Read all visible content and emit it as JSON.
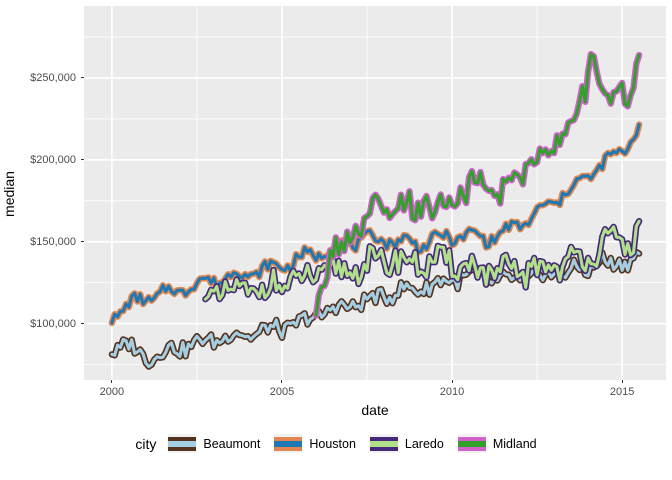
{
  "chart_data": {
    "type": "line",
    "title": "",
    "xlabel": "date",
    "ylabel": "median",
    "legend_title": "city",
    "legend_position": "bottom",
    "panel_bg": "#EBEBEB",
    "grid_color": "#FFFFFF",
    "grid": "on",
    "tick_label_color": "#4D4D4D",
    "axes": {
      "x": {
        "min": 1999.18,
        "max": 2016.29,
        "major_ticks": [
          {
            "v": 2000,
            "label": "2000"
          },
          {
            "v": 2005,
            "label": "2005"
          },
          {
            "v": 2010,
            "label": "2010"
          },
          {
            "v": 2015,
            "label": "2015"
          }
        ],
        "minor_ticks": [
          2002.5,
          2007.5,
          2012.5
        ]
      },
      "y": {
        "min": 65550,
        "max": 293960,
        "major_ticks": [
          {
            "v": 100000,
            "label": "$100,000"
          },
          {
            "v": 150000,
            "label": "$150,000"
          },
          {
            "v": 200000,
            "label": "$200,000"
          },
          {
            "v": 250000,
            "label": "$250,000"
          }
        ],
        "minor_ticks": [
          75000,
          125000,
          175000,
          225000,
          275000
        ]
      }
    },
    "series": [
      {
        "name": "Beaumont",
        "inner_color": "#A6CEE3",
        "outline_color": "#54331F",
        "noise_amp_k": 5,
        "seasonal_amp_k": 2,
        "seed": 3,
        "anchors_year_valueK": [
          [
            2000.0,
            83
          ],
          [
            2000.4,
            88
          ],
          [
            2000.8,
            82
          ],
          [
            2001.2,
            79
          ],
          [
            2001.6,
            84
          ],
          [
            2002.0,
            85
          ],
          [
            2002.5,
            88
          ],
          [
            2003.0,
            90
          ],
          [
            2003.5,
            93
          ],
          [
            2004.0,
            93
          ],
          [
            2004.5,
            96
          ],
          [
            2005.0,
            97
          ],
          [
            2005.5,
            100
          ],
          [
            2006.0,
            105
          ],
          [
            2006.5,
            109
          ],
          [
            2007.0,
            111
          ],
          [
            2007.5,
            114
          ],
          [
            2008.0,
            117
          ],
          [
            2008.5,
            120
          ],
          [
            2009.0,
            121
          ],
          [
            2009.5,
            124
          ],
          [
            2010.0,
            127
          ],
          [
            2010.5,
            129
          ],
          [
            2011.0,
            128
          ],
          [
            2011.5,
            126
          ],
          [
            2012.0,
            127
          ],
          [
            2012.5,
            129
          ],
          [
            2013.0,
            130
          ],
          [
            2013.5,
            132
          ],
          [
            2014.0,
            133
          ],
          [
            2014.4,
            140
          ],
          [
            2014.6,
            134
          ],
          [
            2015.0,
            138
          ],
          [
            2015.5,
            142
          ]
        ]
      },
      {
        "name": "Houston",
        "inner_color": "#1F78B4",
        "outline_color": "#E08850",
        "noise_amp_k": 3.5,
        "seasonal_amp_k": 3,
        "seed": 7,
        "anchors_year_valueK": [
          [
            2000.0,
            105
          ],
          [
            2000.5,
            111
          ],
          [
            2001.0,
            116
          ],
          [
            2001.5,
            118
          ],
          [
            2002.0,
            121
          ],
          [
            2002.5,
            124
          ],
          [
            2003.0,
            127
          ],
          [
            2003.5,
            129
          ],
          [
            2004.0,
            131
          ],
          [
            2004.5,
            133
          ],
          [
            2005.0,
            136
          ],
          [
            2005.5,
            139
          ],
          [
            2006.0,
            143
          ],
          [
            2006.5,
            146
          ],
          [
            2007.0,
            150
          ],
          [
            2007.5,
            151
          ],
          [
            2008.0,
            152
          ],
          [
            2008.5,
            150
          ],
          [
            2009.0,
            149
          ],
          [
            2009.5,
            151
          ],
          [
            2010.0,
            153
          ],
          [
            2010.5,
            154
          ],
          [
            2011.0,
            152
          ],
          [
            2011.5,
            155
          ],
          [
            2012.0,
            161
          ],
          [
            2012.5,
            167
          ],
          [
            2013.0,
            175
          ],
          [
            2013.5,
            182
          ],
          [
            2014.0,
            191
          ],
          [
            2014.5,
            198
          ],
          [
            2015.0,
            206
          ],
          [
            2015.5,
            219
          ]
        ]
      },
      {
        "name": "Laredo",
        "inner_color": "#B2DF8A",
        "outline_color": "#45297B",
        "noise_amp_k": 8.5,
        "seasonal_amp_k": 3,
        "seed": 11,
        "anchors_year_valueK": [
          [
            2002.75,
            121
          ],
          [
            2003.0,
            117
          ],
          [
            2003.5,
            119
          ],
          [
            2004.0,
            120
          ],
          [
            2004.5,
            122
          ],
          [
            2005.0,
            124
          ],
          [
            2005.5,
            126
          ],
          [
            2006.0,
            129
          ],
          [
            2006.5,
            131
          ],
          [
            2007.0,
            133
          ],
          [
            2007.5,
            136
          ],
          [
            2008.0,
            138
          ],
          [
            2008.5,
            139
          ],
          [
            2009.0,
            136
          ],
          [
            2009.5,
            137
          ],
          [
            2010.0,
            137
          ],
          [
            2010.5,
            135
          ],
          [
            2011.0,
            131
          ],
          [
            2011.5,
            131
          ],
          [
            2012.0,
            132
          ],
          [
            2012.5,
            133
          ],
          [
            2013.0,
            136
          ],
          [
            2013.5,
            138
          ],
          [
            2014.0,
            142
          ],
          [
            2014.5,
            148
          ],
          [
            2014.9,
            151
          ],
          [
            2015.2,
            150
          ],
          [
            2015.5,
            153
          ]
        ]
      },
      {
        "name": "Midland",
        "inner_color": "#33A02C",
        "outline_color": "#CF63CB",
        "noise_amp_k": 9,
        "seasonal_amp_k": 4,
        "seed": 19,
        "anchors_year_valueK": [
          [
            2006.0,
            108
          ],
          [
            2006.3,
            135
          ],
          [
            2006.7,
            146
          ],
          [
            2007.0,
            152
          ],
          [
            2007.5,
            161
          ],
          [
            2007.9,
            172
          ],
          [
            2008.3,
            166
          ],
          [
            2008.8,
            170
          ],
          [
            2009.2,
            174
          ],
          [
            2009.6,
            169
          ],
          [
            2010.0,
            176
          ],
          [
            2010.5,
            181
          ],
          [
            2011.0,
            185
          ],
          [
            2011.4,
            178
          ],
          [
            2012.0,
            194
          ],
          [
            2012.5,
            200
          ],
          [
            2013.0,
            211
          ],
          [
            2013.5,
            224
          ],
          [
            2013.8,
            232
          ],
          [
            2014.05,
            255
          ],
          [
            2014.15,
            270
          ],
          [
            2014.35,
            244
          ],
          [
            2014.7,
            238
          ],
          [
            2015.0,
            248
          ],
          [
            2015.2,
            241
          ],
          [
            2015.5,
            254
          ]
        ]
      }
    ]
  }
}
